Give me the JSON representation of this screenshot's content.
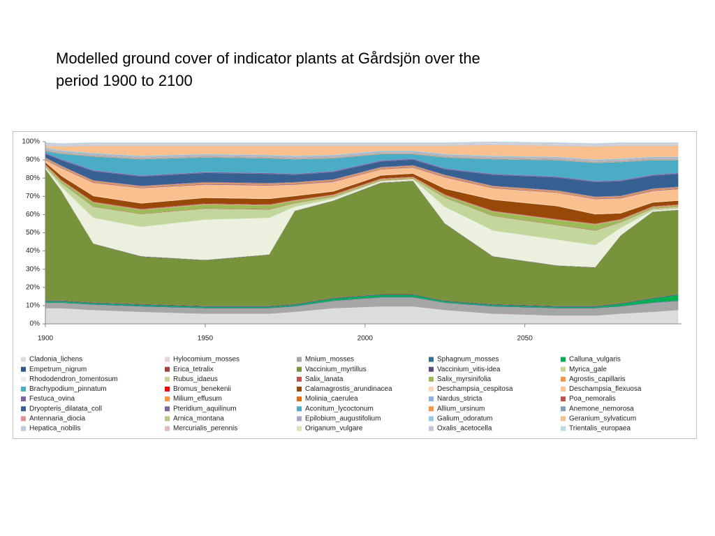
{
  "chart_data": {
    "type": "stacked_area",
    "title": "Modelled ground cover of indicator plants at Gårdsjön over the period 1900 to 2100",
    "x": [
      1900,
      1905,
      1915,
      1930,
      1950,
      1970,
      1978,
      1990,
      2005,
      2015,
      2025,
      2040,
      2060,
      2072,
      2080,
      2090,
      2098
    ],
    "xlim": [
      1900,
      2099
    ],
    "xticks": [
      1900,
      1950,
      2000,
      2050
    ],
    "ylim": [
      0,
      100
    ],
    "yticks": [
      {
        "value": 0,
        "label": "0%"
      },
      {
        "value": 10,
        "label": "10%"
      },
      {
        "value": 20,
        "label": "20%"
      },
      {
        "value": 30,
        "label": "30%"
      },
      {
        "value": 40,
        "label": "40%"
      },
      {
        "value": 50,
        "label": "50%"
      },
      {
        "value": 60,
        "label": "60%"
      },
      {
        "value": 70,
        "label": "70%"
      },
      {
        "value": 80,
        "label": "80%"
      },
      {
        "value": 90,
        "label": "90%"
      },
      {
        "value": 100,
        "label": "100%"
      }
    ],
    "grid": false,
    "legend": "bottom",
    "series": [
      {
        "name": "Cladonia_lichens",
        "color": "#dcdcdc",
        "values": [
          8,
          8,
          7,
          6,
          5,
          5,
          6,
          8,
          9,
          9,
          7,
          5,
          4,
          4,
          5,
          6,
          7
        ]
      },
      {
        "name": "Hylocomium_mosses",
        "color": "#e6d5d5",
        "values": [
          0.5,
          0.5,
          0.5,
          0.5,
          0.5,
          0.5,
          0.5,
          0.5,
          0.5,
          0.5,
          0.5,
          0.5,
          0.5,
          0.5,
          0.5,
          0.5,
          0.5
        ]
      },
      {
        "name": "Mnium_mosses",
        "color": "#a6a6a6",
        "values": [
          3,
          3,
          3,
          3,
          3,
          3,
          3,
          4,
          5,
          5,
          4,
          4,
          4,
          4,
          4,
          5,
          5
        ]
      },
      {
        "name": "Sphagnum_mosses",
        "color": "#31708f",
        "values": [
          0.3,
          0.3,
          0.3,
          0.3,
          0.3,
          0.3,
          0.3,
          0.3,
          0.3,
          0.3,
          0.3,
          0.3,
          0.3,
          0.3,
          0.3,
          0.3,
          0.3
        ]
      },
      {
        "name": "Calluna_vulgaris",
        "color": "#00b050",
        "values": [
          0.5,
          0.5,
          0.5,
          0.5,
          0.5,
          0.5,
          0.5,
          1,
          1,
          1,
          0.5,
          0.5,
          0.5,
          0.5,
          1,
          2,
          3
        ]
      },
      {
        "name": "Empetrum_nigrum",
        "color": "#2e5a8a",
        "values": [
          0.3,
          0.3,
          0.3,
          0.3,
          0.3,
          0.3,
          0.3,
          0.3,
          0.3,
          0.3,
          0.3,
          0.3,
          0.3,
          0.3,
          0.3,
          0.3,
          0.3
        ]
      },
      {
        "name": "Erica_tetralix",
        "color": "#a0413c",
        "values": [
          0.2,
          0.2,
          0.2,
          0.2,
          0.2,
          0.2,
          0.2,
          0.2,
          0.2,
          0.2,
          0.2,
          0.2,
          0.2,
          0.2,
          0.2,
          0.2,
          0.2
        ]
      },
      {
        "name": "Vaccinium_myrtillus",
        "color": "#77933c",
        "values": [
          72,
          60,
          32,
          26,
          25,
          28,
          51,
          53,
          61,
          62,
          42,
          26,
          22,
          21,
          37,
          47,
          46
        ]
      },
      {
        "name": "Vaccinium_vitis-idea",
        "color": "#604a7b",
        "values": [
          0.2,
          0.2,
          0.2,
          0.2,
          0.2,
          0.2,
          0.2,
          0.2,
          0.2,
          0.2,
          0.2,
          0.2,
          0.2,
          0.2,
          0.2,
          0.2,
          0.2
        ]
      },
      {
        "name": "Myrica_gale",
        "color": "#c3d69b",
        "values": [
          0.2,
          0.2,
          0.2,
          0.2,
          0.2,
          0.2,
          0.2,
          0.2,
          0.2,
          0.2,
          0.2,
          0.2,
          0.2,
          0.2,
          0.2,
          0.2,
          0.2
        ]
      },
      {
        "name": "Rhododendron_tomentosum",
        "color": "#ebf1de",
        "values": [
          0.5,
          2,
          14,
          16,
          22,
          20,
          2,
          1,
          0.5,
          0.5,
          9,
          14,
          14,
          12,
          4,
          0.5,
          0.5
        ]
      },
      {
        "name": "Rubus_idaeus",
        "color": "#c3d69b",
        "values": [
          0.5,
          2,
          6,
          7,
          6,
          4.5,
          2,
          1,
          0.5,
          0.5,
          5,
          8,
          8,
          8,
          3,
          1,
          1
        ]
      },
      {
        "name": "Salix_lanata",
        "color": "#c0504d",
        "values": [
          0.2,
          0.2,
          0.2,
          0.2,
          0.2,
          0.2,
          0.2,
          0.2,
          0.2,
          0.2,
          0.2,
          0.2,
          0.2,
          0.2,
          0.2,
          0.2,
          0.2
        ]
      },
      {
        "name": "Salix_myrsinifolia",
        "color": "#9bbb59",
        "values": [
          0.5,
          1,
          2,
          2,
          2,
          2,
          1,
          0.5,
          0.3,
          0.3,
          1,
          2,
          2.5,
          3,
          1,
          0.5,
          0.5
        ]
      },
      {
        "name": "Agrostis_capillaris",
        "color": "#f79646",
        "values": [
          0.3,
          0.3,
          0.3,
          0.3,
          0.3,
          0.3,
          0.3,
          0.3,
          0.3,
          0.3,
          0.3,
          0.3,
          0.3,
          0.3,
          0.3,
          0.3,
          0.3
        ]
      },
      {
        "name": "Brachypodium_pinnatum",
        "color": "#4bacc6",
        "values": [
          0.2,
          0.2,
          0.2,
          0.2,
          0.2,
          0.2,
          0.2,
          0.2,
          0.2,
          0.2,
          0.2,
          0.2,
          0.2,
          0.2,
          0.2,
          0.2,
          0.2
        ]
      },
      {
        "name": "Bromus_benekenii",
        "color": "#ff0000",
        "values": [
          0.2,
          0.2,
          0.2,
          0.2,
          0.2,
          0.2,
          0.2,
          0.2,
          0.2,
          0.2,
          0.2,
          0.2,
          0.2,
          0.2,
          0.2,
          0.2,
          0.2
        ]
      },
      {
        "name": "Calamagrostis_arundinacea",
        "color": "#984807",
        "values": [
          1,
          2,
          3,
          3,
          3,
          3,
          2,
          1.5,
          1.5,
          1.5,
          3,
          6,
          7,
          5,
          3,
          2,
          2
        ]
      },
      {
        "name": "Deschampsia_cespitosa",
        "color": "#fcd5b5",
        "values": [
          0.3,
          0.3,
          0.3,
          0.3,
          0.3,
          0.3,
          0.3,
          0.3,
          0.3,
          0.3,
          0.3,
          0.3,
          0.3,
          0.3,
          0.3,
          0.3,
          0.3
        ]
      },
      {
        "name": "Deschampsia_flexuosa",
        "color": "#fac090",
        "values": [
          1,
          4,
          7,
          8,
          7,
          7,
          6,
          5,
          3,
          3,
          6,
          6,
          7,
          8,
          8,
          6,
          6
        ]
      },
      {
        "name": "Festuca_ovina",
        "color": "#8064a2",
        "values": [
          0.3,
          0.3,
          0.3,
          0.3,
          0.3,
          0.3,
          0.3,
          0.3,
          0.3,
          0.3,
          0.3,
          0.3,
          0.3,
          0.3,
          0.3,
          0.3,
          0.3
        ]
      },
      {
        "name": "Milium_effusum",
        "color": "#f79646",
        "values": [
          0.3,
          0.3,
          0.3,
          0.3,
          0.3,
          0.3,
          0.3,
          0.3,
          0.3,
          0.3,
          0.3,
          0.3,
          0.3,
          0.3,
          0.3,
          0.3,
          0.3
        ]
      },
      {
        "name": "Molinia_caerulea",
        "color": "#e46c0a",
        "values": [
          0.3,
          0.3,
          0.3,
          0.3,
          0.3,
          0.3,
          0.3,
          0.3,
          0.3,
          0.3,
          0.3,
          0.3,
          0.3,
          0.3,
          0.3,
          0.3,
          0.3
        ]
      },
      {
        "name": "Nardus_stricta",
        "color": "#8db3e2",
        "values": [
          0.3,
          0.3,
          0.3,
          0.3,
          0.3,
          0.3,
          0.3,
          0.3,
          0.3,
          0.3,
          0.3,
          0.3,
          0.3,
          0.3,
          0.3,
          0.3,
          0.3
        ]
      },
      {
        "name": "Poa_nemoralis",
        "color": "#c0504d",
        "values": [
          0.2,
          0.2,
          0.2,
          0.2,
          0.2,
          0.2,
          0.2,
          0.2,
          0.2,
          0.2,
          0.2,
          0.2,
          0.2,
          0.2,
          0.2,
          0.2,
          0.2
        ]
      },
      {
        "name": "Dryopteris_dilatata_coll",
        "color": "#366092",
        "values": [
          2,
          3,
          5,
          5,
          5,
          5,
          4,
          4,
          3,
          3,
          3,
          6,
          7,
          8,
          8,
          7,
          7
        ]
      },
      {
        "name": "Pteridium_aquilinum",
        "color": "#8064a2",
        "values": [
          0.5,
          0.5,
          0.5,
          0.5,
          0.5,
          0.5,
          0.5,
          0.5,
          0.5,
          0.5,
          0.5,
          0.5,
          0.5,
          0.5,
          0.5,
          0.5,
          0.5
        ]
      },
      {
        "name": "Aconitum_lycoctonum",
        "color": "#4bacc6",
        "values": [
          1,
          3,
          7.5,
          9,
          8,
          8,
          8,
          7,
          3.5,
          2.5,
          6,
          8,
          9,
          10,
          10,
          8,
          7
        ]
      },
      {
        "name": "Allium_ursinum",
        "color": "#f79646",
        "values": [
          0.2,
          0.2,
          0.2,
          0.2,
          0.2,
          0.2,
          0.2,
          0.2,
          0.2,
          0.2,
          0.2,
          0.2,
          0.2,
          0.2,
          0.2,
          0.2,
          0.2
        ]
      },
      {
        "name": "Anemone_nemorosa",
        "color": "#7f9fc0",
        "values": [
          0.3,
          0.3,
          0.3,
          0.3,
          0.3,
          0.3,
          0.3,
          0.3,
          0.3,
          0.3,
          0.3,
          0.3,
          0.3,
          0.3,
          0.3,
          0.3,
          0.3
        ]
      },
      {
        "name": "Antennaria_diocia",
        "color": "#d99694",
        "values": [
          0.2,
          0.2,
          0.2,
          0.2,
          0.2,
          0.2,
          0.2,
          0.2,
          0.2,
          0.2,
          0.2,
          0.2,
          0.2,
          0.2,
          0.2,
          0.2,
          0.2
        ]
      },
      {
        "name": "Arnica_montana",
        "color": "#b3cc82",
        "values": [
          0.2,
          0.2,
          0.2,
          0.2,
          0.2,
          0.2,
          0.2,
          0.2,
          0.2,
          0.2,
          0.2,
          0.2,
          0.2,
          0.2,
          0.2,
          0.2,
          0.2
        ]
      },
      {
        "name": "Epilobium_augustifolium",
        "color": "#b3a2c7",
        "values": [
          0.5,
          0.5,
          0.5,
          0.5,
          0.5,
          0.5,
          0.5,
          0.5,
          0.5,
          0.5,
          0.5,
          0.5,
          0.5,
          0.5,
          0.5,
          0.5,
          0.5
        ]
      },
      {
        "name": "Galium_odoratum",
        "color": "#93cddd",
        "values": [
          0.5,
          0.5,
          0.5,
          0.5,
          0.5,
          0.5,
          0.5,
          0.5,
          0.5,
          0.5,
          0.5,
          0.5,
          0.5,
          0.5,
          0.5,
          0.5,
          0.5
        ]
      },
      {
        "name": "Geranium_sylvaticum",
        "color": "#fabf8f",
        "values": [
          1,
          2,
          4,
          5.5,
          4.5,
          5,
          5.5,
          5,
          2.7,
          2.7,
          4.5,
          6,
          6,
          7,
          7,
          6,
          6
        ]
      },
      {
        "name": "Hepatica_nobilis",
        "color": "#b9cde5",
        "values": [
          0.5,
          0.5,
          0.5,
          0.5,
          0.5,
          0.5,
          0.5,
          0.5,
          0.5,
          0.5,
          0.5,
          0.5,
          0.5,
          0.5,
          0.5,
          0.5,
          0.5
        ]
      },
      {
        "name": "Mercurialis_perennis",
        "color": "#e6b9b8",
        "values": [
          0.2,
          0.2,
          0.2,
          0.2,
          0.2,
          0.2,
          0.2,
          0.2,
          0.2,
          0.2,
          0.2,
          0.2,
          0.2,
          0.2,
          0.2,
          0.2,
          0.2
        ]
      },
      {
        "name": "Origanum_vulgare",
        "color": "#d7e4bd",
        "values": [
          0.2,
          0.2,
          0.2,
          0.2,
          0.2,
          0.2,
          0.2,
          0.2,
          0.2,
          0.2,
          0.2,
          0.2,
          0.2,
          0.2,
          0.2,
          0.2,
          0.2
        ]
      },
      {
        "name": "Oxalis_acetocella",
        "color": "#ccc1da",
        "values": [
          0.5,
          0.5,
          0.5,
          0.5,
          0.5,
          0.5,
          0.5,
          0.5,
          0.5,
          0.5,
          0.5,
          0.5,
          0.5,
          0.5,
          0.5,
          0.5,
          0.5
        ]
      },
      {
        "name": "Trientalis_europaea",
        "color": "#b7dee8",
        "values": [
          0.5,
          0.5,
          0.5,
          0.5,
          0.5,
          0.5,
          0.5,
          0.5,
          0.5,
          0.5,
          0.5,
          0.5,
          0.5,
          0.5,
          0.5,
          0.5,
          0.5
        ]
      }
    ]
  }
}
